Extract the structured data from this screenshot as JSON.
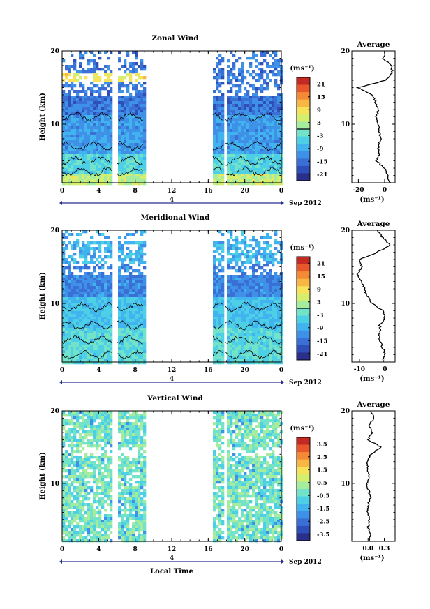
{
  "chart_data": [
    {
      "type": "heatmap",
      "title": "Zonal Wind",
      "ylabel": "Height (km)",
      "xlabel": "",
      "x_ticks": [
        "0",
        "4",
        "8",
        "12",
        "16",
        "20",
        "0"
      ],
      "y_ticks": [
        "10",
        "20"
      ],
      "date_label": "4",
      "date_suffix": "Sep 2012",
      "unit": "(ms⁻¹)",
      "colorbar_ticks": [
        "21",
        "15",
        "9",
        "3",
        "-3",
        "-9",
        "-15",
        "-21"
      ],
      "xlim": [
        0,
        24
      ],
      "ylim": [
        2,
        20
      ],
      "data_gaps": [
        [
          5.5,
          6.0
        ],
        [
          9.0,
          16.5
        ],
        [
          17.6,
          17.9
        ]
      ],
      "profile": {
        "title": "Average",
        "xlabel": "(ms⁻¹)",
        "x_ticks": [
          "-20",
          "0"
        ],
        "y_ticks": [
          "10",
          "20"
        ],
        "xlim": [
          -25,
          8
        ],
        "heights": [
          2,
          3,
          4,
          5,
          6,
          7,
          8,
          9,
          10,
          11,
          12,
          13,
          14,
          15,
          16,
          17,
          18,
          19,
          20
        ],
        "values": [
          4,
          2,
          0,
          -6,
          -4,
          -5,
          -3,
          -4,
          -5,
          -6,
          -5,
          -7,
          -9,
          -20,
          1,
          6,
          5,
          -1,
          0
        ]
      }
    },
    {
      "type": "heatmap",
      "title": "Meridional Wind",
      "ylabel": "Height (km)",
      "xlabel": "",
      "x_ticks": [
        "0",
        "4",
        "8",
        "12",
        "16",
        "20",
        "0"
      ],
      "y_ticks": [
        "10",
        "20"
      ],
      "date_label": "4",
      "date_suffix": "Sep 2012",
      "unit": "(ms⁻¹)",
      "colorbar_ticks": [
        "21",
        "15",
        "9",
        "3",
        "-3",
        "-9",
        "-15",
        "-21"
      ],
      "xlim": [
        0,
        24
      ],
      "ylim": [
        2,
        20
      ],
      "data_gaps": [
        [
          5.5,
          6.0
        ],
        [
          9.0,
          16.5
        ],
        [
          17.6,
          17.9
        ]
      ],
      "profile": {
        "title": "Average",
        "xlabel": "(ms⁻¹)",
        "x_ticks": [
          "-10",
          "0"
        ],
        "y_ticks": [
          "10",
          "20"
        ],
        "xlim": [
          -13,
          4
        ],
        "heights": [
          2,
          3,
          4,
          5,
          6,
          7,
          8,
          9,
          10,
          11,
          12,
          13,
          14,
          15,
          16,
          17,
          18,
          19,
          20
        ],
        "values": [
          -1,
          0,
          -1,
          -2,
          -2,
          -2,
          0,
          -1,
          -5,
          -7,
          -8,
          -9,
          -11,
          -9,
          -10,
          -3,
          2,
          -1,
          -3
        ]
      }
    },
    {
      "type": "heatmap",
      "title": "Vertical Wind",
      "ylabel": "Height (km)",
      "xlabel": "Local Time",
      "x_ticks": [
        "0",
        "4",
        "8",
        "12",
        "16",
        "20",
        "0"
      ],
      "y_ticks": [
        "10",
        "20"
      ],
      "date_label": "4",
      "date_suffix": "Sep 2012",
      "unit": "(ms⁻¹)",
      "colorbar_ticks": [
        "3.5",
        "2.5",
        "1.5",
        "0.5",
        "-0.5",
        "-1.5",
        "-2.5",
        "-3.5"
      ],
      "xlim": [
        0,
        24
      ],
      "ylim": [
        2,
        20
      ],
      "data_gaps": [
        [
          5.5,
          6.0
        ],
        [
          9.0,
          16.5
        ],
        [
          17.6,
          17.9
        ]
      ],
      "profile": {
        "title": "Average",
        "xlabel": "(ms⁻¹)",
        "x_ticks": [
          "0.0",
          "0.3"
        ],
        "y_ticks": [
          "10",
          "20"
        ],
        "xlim": [
          -0.3,
          0.5
        ],
        "heights": [
          2,
          3,
          4,
          5,
          6,
          7,
          8,
          9,
          10,
          11,
          12,
          13,
          14,
          15,
          16,
          17,
          18,
          19,
          20
        ],
        "values": [
          0.02,
          0.05,
          0.0,
          0.03,
          -0.02,
          0.0,
          0.04,
          0.01,
          -0.02,
          0.02,
          0.0,
          -0.03,
          0.05,
          0.25,
          0.0,
          0.08,
          0.02,
          0.1,
          0.05
        ]
      }
    }
  ]
}
